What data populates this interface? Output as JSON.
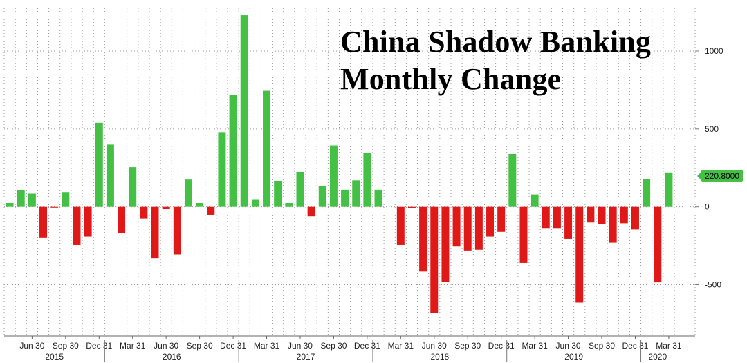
{
  "chart_data": {
    "type": "bar",
    "title_lines": [
      "China Shadow Banking",
      "Monthly Change"
    ],
    "y_ticks": [
      1000,
      500,
      0,
      -500
    ],
    "y_tick_labels": [
      "1000",
      "500",
      "0",
      "-500"
    ],
    "ylim": [
      -830,
      1310
    ],
    "grid": true,
    "positive_color": "#44c044",
    "negative_color": "#e01818",
    "last_value_label": "220.8000",
    "month_labels": [
      {
        "index": 2,
        "label": "Jun 30"
      },
      {
        "index": 5,
        "label": "Sep 30"
      },
      {
        "index": 8,
        "label": "Dec 31"
      },
      {
        "index": 11,
        "label": "Mar 31"
      },
      {
        "index": 14,
        "label": "Jun 30"
      },
      {
        "index": 17,
        "label": "Sep 30"
      },
      {
        "index": 20,
        "label": "Dec 31"
      },
      {
        "index": 23,
        "label": "Mar 31"
      },
      {
        "index": 26,
        "label": "Jun 30"
      },
      {
        "index": 29,
        "label": "Sep 30"
      },
      {
        "index": 32,
        "label": "Dec 31"
      },
      {
        "index": 35,
        "label": "Mar 31"
      },
      {
        "index": 38,
        "label": "Jun 30"
      },
      {
        "index": 41,
        "label": "Sep 30"
      },
      {
        "index": 44,
        "label": "Dec 31"
      },
      {
        "index": 47,
        "label": "Mar 31"
      },
      {
        "index": 50,
        "label": "Jun 30"
      },
      {
        "index": 53,
        "label": "Sep 30"
      },
      {
        "index": 56,
        "label": "Dec 31"
      },
      {
        "index": 59,
        "label": "Mar 31"
      }
    ],
    "year_labels": [
      {
        "label": "2015",
        "start": 0,
        "end": 8
      },
      {
        "label": "2016",
        "start": 9,
        "end": 20
      },
      {
        "label": "2017",
        "start": 21,
        "end": 32
      },
      {
        "label": "2018",
        "start": 33,
        "end": 44
      },
      {
        "label": "2019",
        "start": 45,
        "end": 56
      },
      {
        "label": "2020",
        "start": 57,
        "end": 59
      }
    ],
    "values": [
      25,
      105,
      85,
      -200,
      -5,
      95,
      -245,
      -190,
      540,
      400,
      -170,
      255,
      -75,
      -330,
      -15,
      -305,
      175,
      25,
      -50,
      480,
      720,
      1230,
      45,
      745,
      165,
      25,
      225,
      -60,
      135,
      395,
      110,
      170,
      345,
      110,
      0,
      -245,
      -10,
      -415,
      -680,
      -480,
      -255,
      -280,
      -275,
      -190,
      -160,
      340,
      -360,
      80,
      -140,
      -140,
      -205,
      -615,
      -100,
      -110,
      -230,
      -105,
      -145,
      180,
      -485,
      221
    ]
  }
}
